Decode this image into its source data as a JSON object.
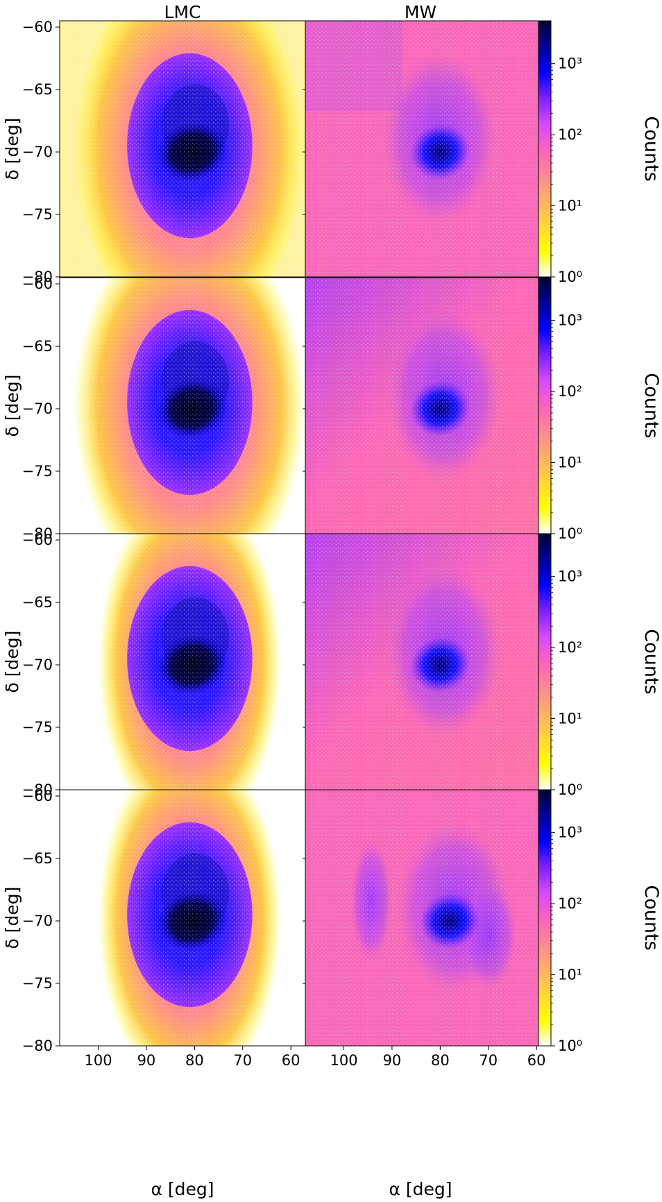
{
  "chart_data": {
    "type": "heatmap",
    "column_titles": [
      "LMC",
      "MW"
    ],
    "xlabel": "α [deg]",
    "ylabel": "δ [deg]",
    "xlim": [
      108,
      57
    ],
    "ylim": [
      -80,
      -59.5
    ],
    "xticks": [
      "100",
      "90",
      "80",
      "70",
      "60"
    ],
    "yticks": [
      "−60",
      "−65",
      "−70",
      "−75",
      "−80"
    ],
    "rows": 4,
    "colorbar": {
      "label": "Counts",
      "scale": "log",
      "range": [
        1,
        4000
      ],
      "ticks": [
        "10⁰",
        "10¹",
        "10²",
        "10³"
      ],
      "colormap": [
        "#ffffff",
        "#ffff00",
        "#fdd23a",
        "#ff9a70",
        "#ff5fc0",
        "#cc44ff",
        "#5a1cff",
        "#0000ff",
        "#000044"
      ]
    },
    "panels": [
      {
        "row": 1,
        "column": "LMC",
        "center": [
          81,
          -69.5
        ],
        "bar_center": [
          80.5,
          -70
        ],
        "spread": "wide"
      },
      {
        "row": 1,
        "column": "MW",
        "center": [
          81,
          -69.5
        ],
        "bar_center": [
          80,
          -70
        ],
        "background": "flat"
      },
      {
        "row": 2,
        "column": "LMC",
        "center": [
          81,
          -69.5
        ],
        "bar_center": [
          80.5,
          -70
        ],
        "spread": "wide"
      },
      {
        "row": 2,
        "column": "MW",
        "center": [
          80,
          -69.5
        ],
        "bar_center": [
          80,
          -70
        ],
        "background": "gradient"
      },
      {
        "row": 3,
        "column": "LMC",
        "center": [
          81,
          -69.5
        ],
        "bar_center": [
          80.5,
          -70
        ],
        "spread": "narrow"
      },
      {
        "row": 3,
        "column": "MW",
        "center": [
          80,
          -69.5
        ],
        "bar_center": [
          80,
          -70
        ],
        "background": "gradient"
      },
      {
        "row": 4,
        "column": "LMC",
        "center": [
          81,
          -69.5
        ],
        "bar_center": [
          80.5,
          -70
        ],
        "spread": "narrow"
      },
      {
        "row": 4,
        "column": "MW",
        "center": [
          78,
          -69.5
        ],
        "bar_center": [
          78,
          -70
        ],
        "background": "flat"
      }
    ]
  }
}
